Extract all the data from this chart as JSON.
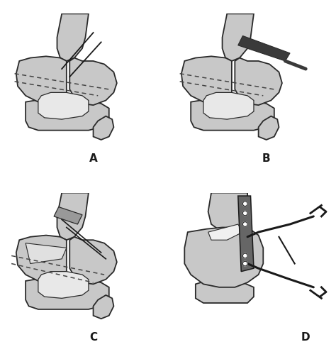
{
  "bg_color": "#ffffff",
  "bone_fill": "#c8c8c8",
  "bone_edge": "#2a2a2a",
  "bone_edge_width": 1.3,
  "cartilage_fill": "#e8e8e8",
  "dark_fill": "#3a3a3a",
  "plate_fill": "#777777",
  "line_color": "#1a1a1a",
  "dashed_color": "#444444",
  "label_A": "A",
  "label_B": "B",
  "label_C": "C",
  "label_D": "D",
  "label_fontsize": 11,
  "label_fontweight": "bold"
}
